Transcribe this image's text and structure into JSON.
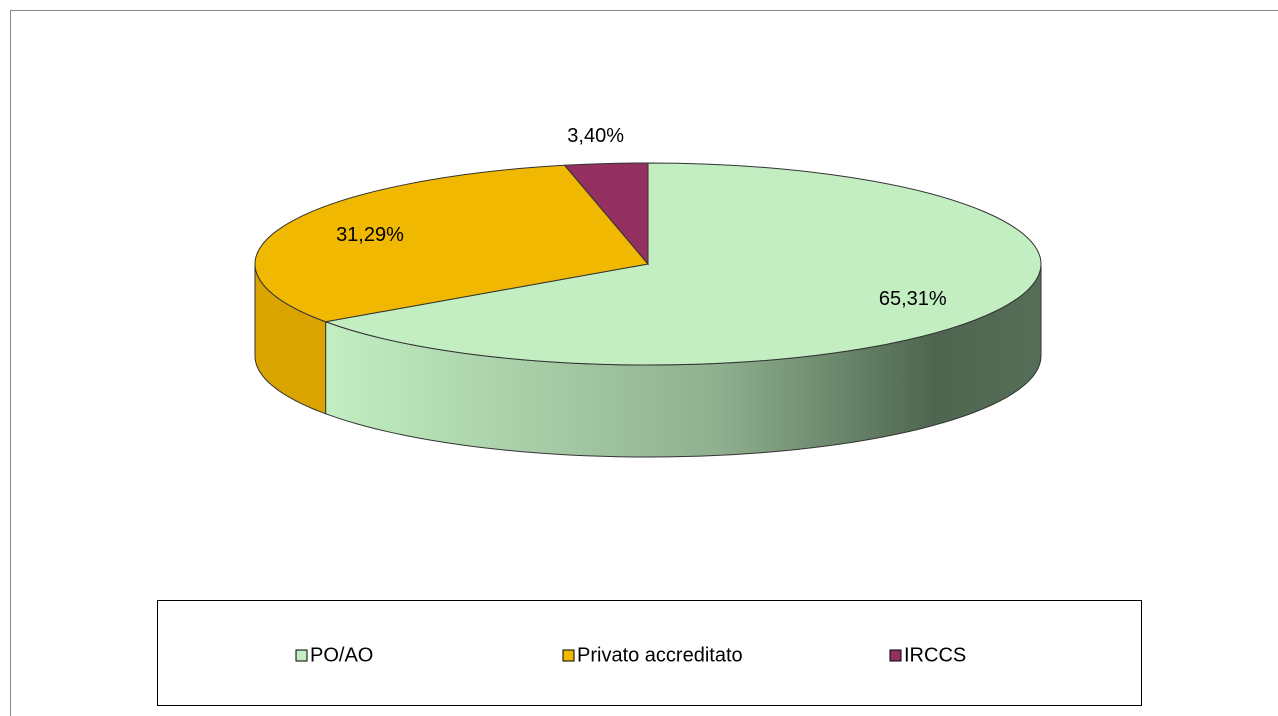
{
  "chart_data": {
    "type": "pie3d",
    "categories": [
      "PO/AO",
      "Privato accreditato",
      "IRCCS"
    ],
    "values": [
      65.31,
      31.29,
      3.4
    ],
    "value_labels": [
      "65,31%",
      "31,29%",
      "3,40%"
    ],
    "colors": [
      "#c2eec2",
      "#f0b800",
      "#943060"
    ],
    "legend": "bottom"
  }
}
